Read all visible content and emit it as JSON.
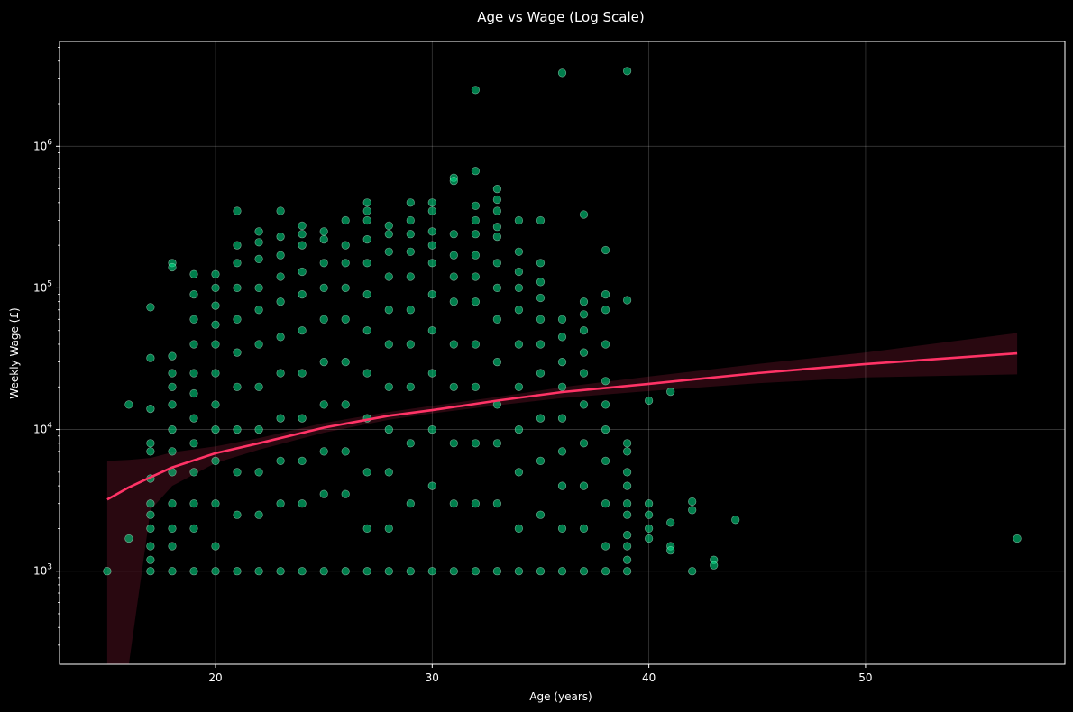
{
  "chart_data": {
    "type": "scatter",
    "title": "Age vs Wage (Log Scale)",
    "xlabel": "Age (years)",
    "ylabel": "Weekly Wage (£)",
    "xlim": [
      12.8,
      59.2
    ],
    "ylim": [
      220,
      5500000
    ],
    "yscale": "log",
    "grid": true,
    "x_ticks": [
      20,
      30,
      40,
      50
    ],
    "y_ticks": [
      {
        "value": 1000,
        "base": "10",
        "exp": "3"
      },
      {
        "value": 10000,
        "base": "10",
        "exp": "4"
      },
      {
        "value": 100000,
        "base": "10",
        "exp": "5"
      },
      {
        "value": 1000000,
        "base": "10",
        "exp": "6"
      }
    ],
    "colors": {
      "background": "#000000",
      "axes": "#ffffff",
      "grid": "#ffffff",
      "points": "#00e68a",
      "points_edge": "#ccffe6",
      "fit_line": "#ff3366",
      "fit_band": "#ff3366"
    },
    "series": [
      {
        "type": "scatter",
        "points": [
          [
            15,
            1000
          ],
          [
            16,
            1700
          ],
          [
            16,
            15000
          ],
          [
            17,
            73000
          ],
          [
            17,
            32000
          ],
          [
            17,
            14000
          ],
          [
            17,
            8000
          ],
          [
            17,
            7000
          ],
          [
            17,
            4500
          ],
          [
            17,
            3000
          ],
          [
            17,
            2500
          ],
          [
            17,
            2000
          ],
          [
            17,
            1500
          ],
          [
            17,
            1200
          ],
          [
            17,
            1000
          ],
          [
            18,
            150000
          ],
          [
            18,
            140000
          ],
          [
            18,
            33000
          ],
          [
            18,
            25000
          ],
          [
            18,
            20000
          ],
          [
            18,
            15000
          ],
          [
            18,
            10000
          ],
          [
            18,
            7000
          ],
          [
            18,
            5000
          ],
          [
            18,
            3000
          ],
          [
            18,
            2000
          ],
          [
            18,
            1500
          ],
          [
            18,
            1000
          ],
          [
            19,
            125000
          ],
          [
            19,
            90000
          ],
          [
            19,
            60000
          ],
          [
            19,
            40000
          ],
          [
            19,
            25000
          ],
          [
            19,
            18000
          ],
          [
            19,
            12000
          ],
          [
            19,
            8000
          ],
          [
            19,
            5000
          ],
          [
            19,
            3000
          ],
          [
            19,
            2000
          ],
          [
            19,
            1000
          ],
          [
            20,
            125000
          ],
          [
            20,
            100000
          ],
          [
            20,
            75000
          ],
          [
            20,
            55000
          ],
          [
            20,
            40000
          ],
          [
            20,
            25000
          ],
          [
            20,
            15000
          ],
          [
            20,
            10000
          ],
          [
            20,
            6000
          ],
          [
            20,
            3000
          ],
          [
            20,
            1500
          ],
          [
            20,
            1000
          ],
          [
            21,
            350000
          ],
          [
            21,
            200000
          ],
          [
            21,
            150000
          ],
          [
            21,
            100000
          ],
          [
            21,
            60000
          ],
          [
            21,
            35000
          ],
          [
            21,
            20000
          ],
          [
            21,
            10000
          ],
          [
            21,
            5000
          ],
          [
            21,
            2500
          ],
          [
            21,
            1000
          ],
          [
            22,
            250000
          ],
          [
            22,
            210000
          ],
          [
            22,
            160000
          ],
          [
            22,
            100000
          ],
          [
            22,
            70000
          ],
          [
            22,
            40000
          ],
          [
            22,
            20000
          ],
          [
            22,
            10000
          ],
          [
            22,
            5000
          ],
          [
            22,
            2500
          ],
          [
            22,
            1000
          ],
          [
            23,
            350000
          ],
          [
            23,
            230000
          ],
          [
            23,
            170000
          ],
          [
            23,
            120000
          ],
          [
            23,
            80000
          ],
          [
            23,
            45000
          ],
          [
            23,
            25000
          ],
          [
            23,
            12000
          ],
          [
            23,
            6000
          ],
          [
            23,
            3000
          ],
          [
            23,
            1000
          ],
          [
            24,
            275000
          ],
          [
            24,
            240000
          ],
          [
            24,
            200000
          ],
          [
            24,
            130000
          ],
          [
            24,
            90000
          ],
          [
            24,
            50000
          ],
          [
            24,
            25000
          ],
          [
            24,
            12000
          ],
          [
            24,
            6000
          ],
          [
            24,
            3000
          ],
          [
            24,
            1000
          ],
          [
            25,
            250000
          ],
          [
            25,
            220000
          ],
          [
            25,
            150000
          ],
          [
            25,
            100000
          ],
          [
            25,
            60000
          ],
          [
            25,
            30000
          ],
          [
            25,
            15000
          ],
          [
            25,
            7000
          ],
          [
            25,
            3500
          ],
          [
            25,
            1000
          ],
          [
            26,
            300000
          ],
          [
            26,
            200000
          ],
          [
            26,
            150000
          ],
          [
            26,
            100000
          ],
          [
            26,
            60000
          ],
          [
            26,
            30000
          ],
          [
            26,
            15000
          ],
          [
            26,
            7000
          ],
          [
            26,
            3500
          ],
          [
            26,
            1000
          ],
          [
            27,
            400000
          ],
          [
            27,
            350000
          ],
          [
            27,
            300000
          ],
          [
            27,
            220000
          ],
          [
            27,
            150000
          ],
          [
            27,
            90000
          ],
          [
            27,
            50000
          ],
          [
            27,
            25000
          ],
          [
            27,
            12000
          ],
          [
            27,
            5000
          ],
          [
            27,
            2000
          ],
          [
            27,
            1000
          ],
          [
            28,
            275000
          ],
          [
            28,
            240000
          ],
          [
            28,
            180000
          ],
          [
            28,
            120000
          ],
          [
            28,
            70000
          ],
          [
            28,
            40000
          ],
          [
            28,
            20000
          ],
          [
            28,
            10000
          ],
          [
            28,
            5000
          ],
          [
            28,
            2000
          ],
          [
            28,
            1000
          ],
          [
            29,
            400000
          ],
          [
            29,
            300000
          ],
          [
            29,
            240000
          ],
          [
            29,
            180000
          ],
          [
            29,
            120000
          ],
          [
            29,
            70000
          ],
          [
            29,
            40000
          ],
          [
            29,
            20000
          ],
          [
            29,
            8000
          ],
          [
            29,
            3000
          ],
          [
            29,
            1000
          ],
          [
            30,
            400000
          ],
          [
            30,
            350000
          ],
          [
            30,
            250000
          ],
          [
            30,
            200000
          ],
          [
            30,
            150000
          ],
          [
            30,
            90000
          ],
          [
            30,
            50000
          ],
          [
            30,
            25000
          ],
          [
            30,
            10000
          ],
          [
            30,
            4000
          ],
          [
            30,
            1000
          ],
          [
            31,
            600000
          ],
          [
            31,
            570000
          ],
          [
            31,
            240000
          ],
          [
            31,
            170000
          ],
          [
            31,
            120000
          ],
          [
            31,
            80000
          ],
          [
            31,
            40000
          ],
          [
            31,
            20000
          ],
          [
            31,
            8000
          ],
          [
            31,
            3000
          ],
          [
            31,
            1000
          ],
          [
            32,
            2500000
          ],
          [
            32,
            670000
          ],
          [
            32,
            380000
          ],
          [
            32,
            300000
          ],
          [
            32,
            240000
          ],
          [
            32,
            170000
          ],
          [
            32,
            120000
          ],
          [
            32,
            80000
          ],
          [
            32,
            40000
          ],
          [
            32,
            20000
          ],
          [
            32,
            8000
          ],
          [
            32,
            3000
          ],
          [
            32,
            1000
          ],
          [
            33,
            500000
          ],
          [
            33,
            420000
          ],
          [
            33,
            350000
          ],
          [
            33,
            270000
          ],
          [
            33,
            230000
          ],
          [
            33,
            150000
          ],
          [
            33,
            100000
          ],
          [
            33,
            60000
          ],
          [
            33,
            30000
          ],
          [
            33,
            15000
          ],
          [
            33,
            8000
          ],
          [
            33,
            3000
          ],
          [
            33,
            1000
          ],
          [
            34,
            300000
          ],
          [
            34,
            180000
          ],
          [
            34,
            130000
          ],
          [
            34,
            100000
          ],
          [
            34,
            70000
          ],
          [
            34,
            40000
          ],
          [
            34,
            20000
          ],
          [
            34,
            10000
          ],
          [
            34,
            5000
          ],
          [
            34,
            2000
          ],
          [
            34,
            1000
          ],
          [
            35,
            300000
          ],
          [
            35,
            150000
          ],
          [
            35,
            110000
          ],
          [
            35,
            85000
          ],
          [
            35,
            60000
          ],
          [
            35,
            40000
          ],
          [
            35,
            25000
          ],
          [
            35,
            12000
          ],
          [
            35,
            6000
          ],
          [
            35,
            2500
          ],
          [
            35,
            1000
          ],
          [
            36,
            3300000
          ],
          [
            36,
            60000
          ],
          [
            36,
            45000
          ],
          [
            36,
            30000
          ],
          [
            36,
            20000
          ],
          [
            36,
            12000
          ],
          [
            36,
            7000
          ],
          [
            36,
            4000
          ],
          [
            36,
            2000
          ],
          [
            36,
            1000
          ],
          [
            37,
            330000
          ],
          [
            37,
            80000
          ],
          [
            37,
            65000
          ],
          [
            37,
            50000
          ],
          [
            37,
            35000
          ],
          [
            37,
            25000
          ],
          [
            37,
            15000
          ],
          [
            37,
            8000
          ],
          [
            37,
            4000
          ],
          [
            37,
            2000
          ],
          [
            37,
            1000
          ],
          [
            38,
            185000
          ],
          [
            38,
            90000
          ],
          [
            38,
            70000
          ],
          [
            38,
            40000
          ],
          [
            38,
            22000
          ],
          [
            38,
            15000
          ],
          [
            38,
            10000
          ],
          [
            38,
            6000
          ],
          [
            38,
            3000
          ],
          [
            38,
            1500
          ],
          [
            38,
            1000
          ],
          [
            39,
            3400000
          ],
          [
            39,
            82000
          ],
          [
            39,
            8000
          ],
          [
            39,
            7000
          ],
          [
            39,
            5000
          ],
          [
            39,
            4000
          ],
          [
            39,
            3000
          ],
          [
            39,
            2500
          ],
          [
            39,
            1800
          ],
          [
            39,
            1500
          ],
          [
            39,
            1200
          ],
          [
            39,
            1000
          ],
          [
            40,
            16000
          ],
          [
            40,
            3000
          ],
          [
            40,
            2500
          ],
          [
            40,
            2000
          ],
          [
            40,
            1700
          ],
          [
            41,
            18500
          ],
          [
            41,
            2200
          ],
          [
            41,
            1500
          ],
          [
            41,
            1400
          ],
          [
            42,
            3100
          ],
          [
            42,
            2700
          ],
          [
            42,
            1000
          ],
          [
            43,
            1200
          ],
          [
            43,
            1100
          ],
          [
            44,
            2300
          ],
          [
            57,
            1700
          ]
        ]
      },
      {
        "type": "line",
        "x": [
          15,
          16,
          17,
          18,
          20,
          22,
          25,
          28,
          30,
          33,
          36,
          40,
          45,
          50,
          57
        ],
        "y": [
          3200,
          3900,
          4600,
          5400,
          6800,
          8000,
          10300,
          12500,
          13700,
          16000,
          18400,
          21000,
          25000,
          29000,
          34500
        ]
      },
      {
        "type": "band",
        "x": [
          15,
          16,
          17,
          18,
          20,
          22,
          25,
          28,
          30,
          33,
          36,
          40,
          45,
          50,
          57
        ],
        "y_lower": [
          220,
          220,
          2700,
          4000,
          5800,
          7200,
          9500,
          11700,
          13000,
          14800,
          16700,
          18700,
          21200,
          23300,
          24500
        ],
        "y_upper": [
          6000,
          6100,
          6300,
          6900,
          7600,
          8700,
          11100,
          13300,
          14700,
          17000,
          19900,
          23700,
          29000,
          35000,
          48000
        ]
      }
    ]
  }
}
